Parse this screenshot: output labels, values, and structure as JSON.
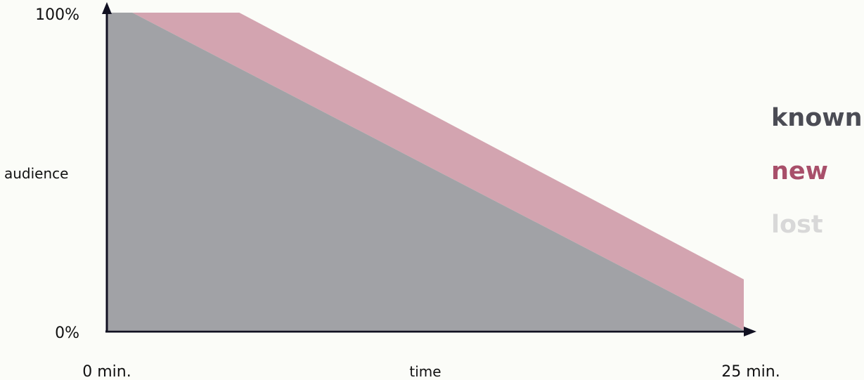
{
  "chart_data": {
    "type": "area",
    "stacked": true,
    "xlabel": "time",
    "ylabel": "audience",
    "x_tick_labels": [
      "0 min.",
      "25 min."
    ],
    "y_tick_labels": [
      "0%",
      "100%"
    ],
    "xlim": [
      0,
      25
    ],
    "ylim": [
      0,
      100
    ],
    "grid": false,
    "legend_placement": "right",
    "series": [
      {
        "name": "known",
        "color": "#a1a2a6",
        "points": [
          [
            0,
            100
          ],
          [
            1,
            100
          ],
          [
            25,
            0
          ]
        ]
      },
      {
        "name": "new",
        "color": "#d3a4b0",
        "label_color": "#a84f6a",
        "upper_points": [
          [
            1,
            100
          ],
          [
            5.2,
            100
          ],
          [
            25,
            16
          ]
        ]
      },
      {
        "name": "lost",
        "color": "#d8d8d8"
      }
    ],
    "legend_colors": {
      "known": "#4b4c55",
      "new": "#a84f6a",
      "lost": "#d8d8d8"
    },
    "axis_color": "#111122"
  }
}
